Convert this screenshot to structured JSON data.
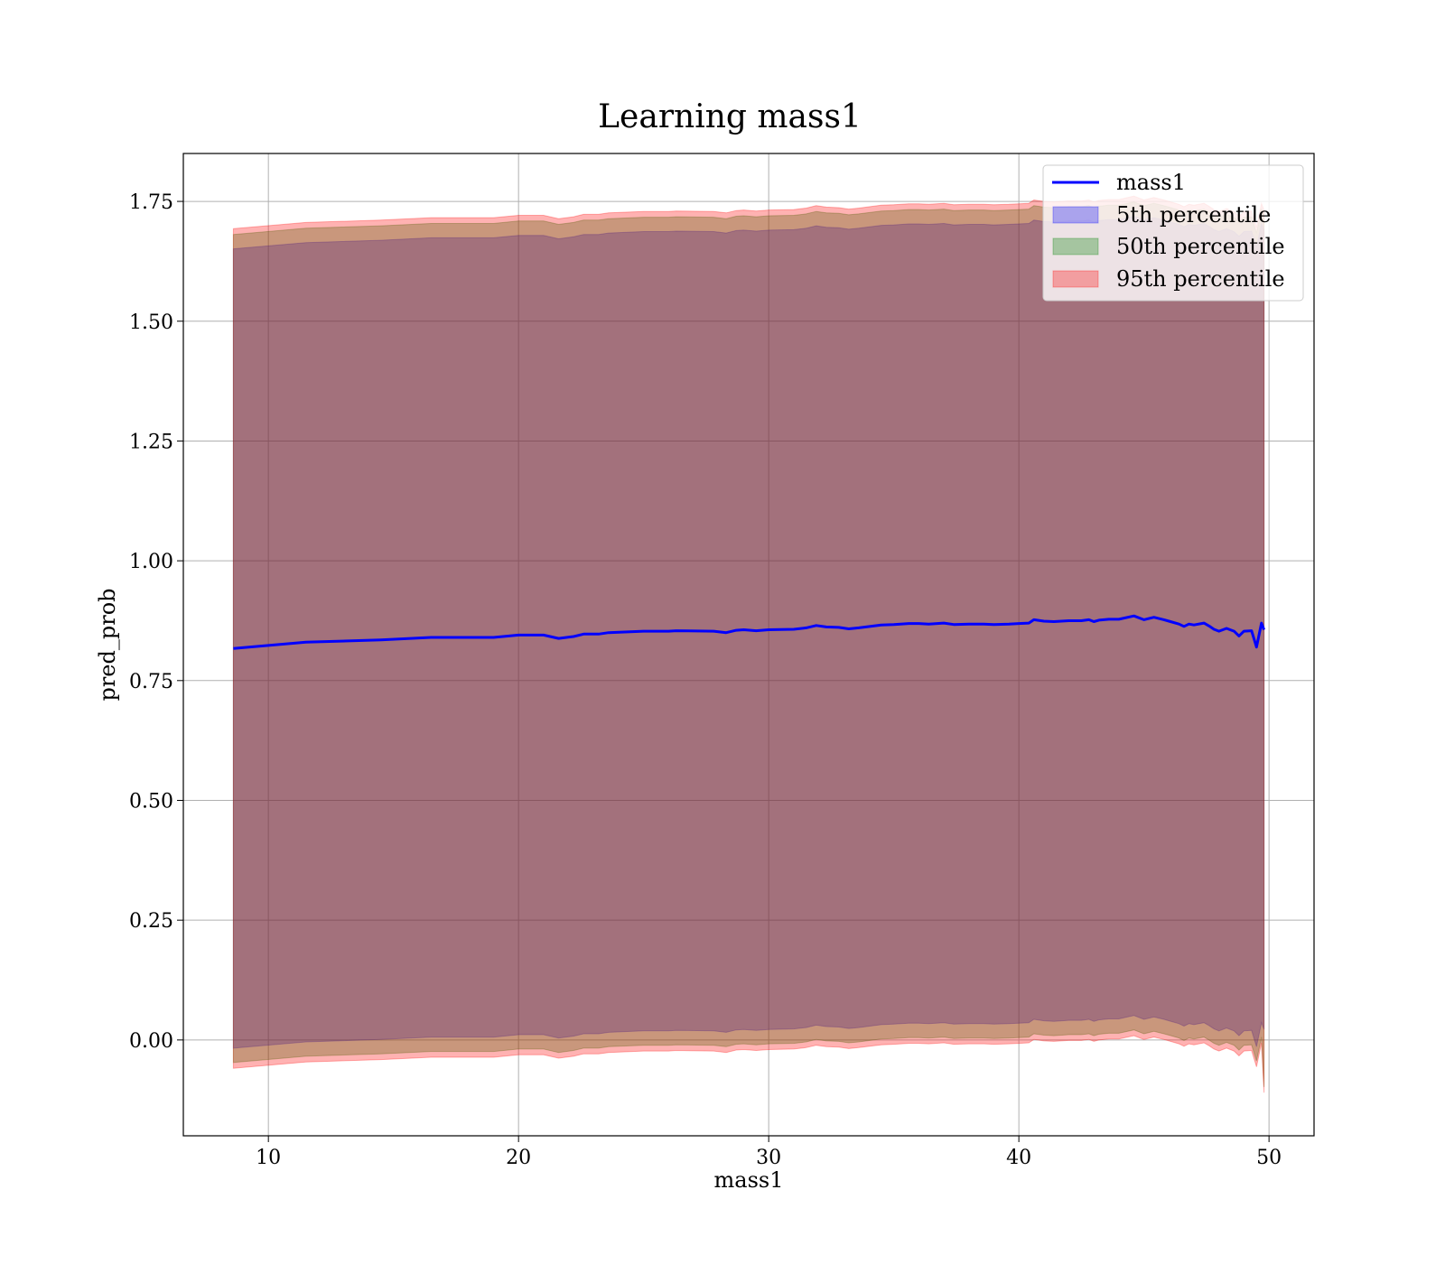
{
  "chart_data": {
    "type": "line",
    "title": "Learning mass1",
    "xlabel": "mass1",
    "ylabel": "pred_prob",
    "xlim": [
      6.6,
      51.8
    ],
    "ylim": [
      -0.2,
      1.85
    ],
    "xticks": [
      10,
      20,
      30,
      40,
      50
    ],
    "xtick_labels": [
      "10",
      "20",
      "30",
      "40",
      "50"
    ],
    "yticks": [
      0.0,
      0.25,
      0.5,
      0.75,
      1.0,
      1.25,
      1.5,
      1.75
    ],
    "ytick_labels": [
      "0.00",
      "0.25",
      "0.50",
      "0.75",
      "1.00",
      "1.25",
      "1.50",
      "1.75"
    ],
    "grid": true,
    "legend_position": "top-right",
    "x": [
      8.6,
      11.5,
      14.5,
      16.5,
      19.0,
      20.0,
      21.0,
      21.6,
      22.2,
      22.6,
      23.2,
      23.6,
      25.0,
      26.0,
      26.3,
      27.8,
      28.3,
      28.7,
      29.0,
      29.5,
      30.0,
      31.0,
      31.5,
      31.9,
      32.3,
      32.8,
      33.2,
      33.6,
      34.5,
      35.0,
      35.6,
      36.0,
      36.4,
      37.0,
      37.4,
      38.0,
      38.6,
      39.0,
      39.6,
      40.0,
      40.4,
      40.6,
      41.0,
      41.4,
      42.0,
      42.5,
      42.8,
      43.0,
      43.2,
      43.6,
      44.0,
      44.6,
      45.0,
      45.4,
      45.8,
      46.0,
      46.4,
      46.6,
      46.8,
      47.0,
      47.4,
      47.6,
      47.8,
      48.0,
      48.3,
      48.6,
      48.8,
      49.0,
      49.3,
      49.5,
      49.7,
      49.8
    ],
    "series": [
      {
        "name": "mass1",
        "kind": "line",
        "color": "#0000ff",
        "values": [
          0.817,
          0.83,
          0.835,
          0.84,
          0.84,
          0.845,
          0.845,
          0.838,
          0.842,
          0.847,
          0.847,
          0.85,
          0.853,
          0.853,
          0.854,
          0.853,
          0.85,
          0.855,
          0.856,
          0.854,
          0.856,
          0.857,
          0.86,
          0.865,
          0.862,
          0.861,
          0.858,
          0.86,
          0.866,
          0.867,
          0.869,
          0.869,
          0.868,
          0.87,
          0.867,
          0.868,
          0.868,
          0.867,
          0.868,
          0.869,
          0.87,
          0.877,
          0.874,
          0.873,
          0.875,
          0.875,
          0.877,
          0.873,
          0.876,
          0.878,
          0.878,
          0.885,
          0.877,
          0.882,
          0.877,
          0.874,
          0.868,
          0.863,
          0.868,
          0.866,
          0.87,
          0.864,
          0.857,
          0.853,
          0.859,
          0.853,
          0.843,
          0.853,
          0.854,
          0.82,
          0.87,
          0.856
        ]
      },
      {
        "name": "5th percentile",
        "kind": "band",
        "color": "#0000ff",
        "upper": [
          1.651,
          1.664,
          1.669,
          1.674,
          1.674,
          1.679,
          1.679,
          1.672,
          1.676,
          1.681,
          1.681,
          1.684,
          1.687,
          1.687,
          1.688,
          1.687,
          1.684,
          1.689,
          1.69,
          1.688,
          1.69,
          1.691,
          1.694,
          1.699,
          1.696,
          1.695,
          1.692,
          1.694,
          1.7,
          1.701,
          1.703,
          1.703,
          1.702,
          1.704,
          1.701,
          1.702,
          1.702,
          1.701,
          1.702,
          1.703,
          1.704,
          1.711,
          1.708,
          1.707,
          1.709,
          1.709,
          1.711,
          1.707,
          1.71,
          1.712,
          1.712,
          1.719,
          1.711,
          1.716,
          1.711,
          1.708,
          1.702,
          1.697,
          1.702,
          1.7,
          1.704,
          1.698,
          1.691,
          1.687,
          1.693,
          1.687,
          1.677,
          1.687,
          1.688,
          1.654,
          1.704,
          1.69
        ],
        "lower": [
          -0.017,
          -0.004,
          0.001,
          0.006,
          0.006,
          0.011,
          0.011,
          0.004,
          0.008,
          0.013,
          0.013,
          0.016,
          0.019,
          0.019,
          0.02,
          0.019,
          0.016,
          0.021,
          0.022,
          0.02,
          0.022,
          0.023,
          0.026,
          0.031,
          0.028,
          0.027,
          0.024,
          0.026,
          0.032,
          0.033,
          0.035,
          0.035,
          0.034,
          0.036,
          0.033,
          0.034,
          0.034,
          0.033,
          0.034,
          0.035,
          0.036,
          0.043,
          0.04,
          0.039,
          0.041,
          0.041,
          0.043,
          0.039,
          0.042,
          0.044,
          0.044,
          0.051,
          0.043,
          0.048,
          0.043,
          0.04,
          0.034,
          0.029,
          0.034,
          0.032,
          0.036,
          0.03,
          0.023,
          0.019,
          0.025,
          0.019,
          0.009,
          0.019,
          0.02,
          -0.014,
          0.036,
          0.022
        ]
      },
      {
        "name": "50th percentile",
        "kind": "band",
        "color": "#008000",
        "upper": [
          1.681,
          1.694,
          1.699,
          1.704,
          1.704,
          1.709,
          1.709,
          1.702,
          1.706,
          1.711,
          1.711,
          1.714,
          1.717,
          1.717,
          1.718,
          1.717,
          1.714,
          1.719,
          1.72,
          1.718,
          1.72,
          1.721,
          1.724,
          1.729,
          1.726,
          1.725,
          1.722,
          1.724,
          1.73,
          1.731,
          1.733,
          1.733,
          1.732,
          1.734,
          1.731,
          1.732,
          1.732,
          1.731,
          1.732,
          1.733,
          1.734,
          1.741,
          1.738,
          1.737,
          1.739,
          1.739,
          1.741,
          1.737,
          1.74,
          1.742,
          1.742,
          1.749,
          1.741,
          1.746,
          1.741,
          1.738,
          1.732,
          1.727,
          1.732,
          1.73,
          1.734,
          1.728,
          1.721,
          1.717,
          1.723,
          1.717,
          1.707,
          1.717,
          1.718,
          1.684,
          1.734,
          1.72
        ],
        "lower": [
          -0.047,
          -0.034,
          -0.029,
          -0.024,
          -0.024,
          -0.019,
          -0.019,
          -0.026,
          -0.022,
          -0.017,
          -0.017,
          -0.014,
          -0.011,
          -0.011,
          -0.01,
          -0.011,
          -0.014,
          -0.009,
          -0.008,
          -0.01,
          -0.008,
          -0.007,
          -0.004,
          0.001,
          -0.002,
          -0.003,
          -0.006,
          -0.004,
          0.002,
          0.003,
          0.005,
          0.005,
          0.004,
          0.006,
          0.003,
          0.004,
          0.004,
          0.003,
          0.004,
          0.005,
          0.006,
          0.013,
          0.01,
          0.009,
          0.011,
          0.011,
          0.013,
          0.009,
          0.012,
          0.014,
          0.014,
          0.021,
          0.013,
          0.018,
          0.013,
          0.01,
          0.004,
          -0.001,
          0.004,
          0.002,
          0.006,
          0.0,
          -0.007,
          -0.011,
          -0.005,
          -0.011,
          -0.021,
          -0.011,
          -0.01,
          -0.044,
          0.006,
          -0.098
        ]
      },
      {
        "name": "95th percentile",
        "kind": "band",
        "color": "#ff0000",
        "upper": [
          1.693,
          1.706,
          1.711,
          1.716,
          1.716,
          1.721,
          1.721,
          1.714,
          1.718,
          1.723,
          1.723,
          1.726,
          1.729,
          1.729,
          1.73,
          1.729,
          1.726,
          1.731,
          1.732,
          1.73,
          1.732,
          1.733,
          1.736,
          1.741,
          1.738,
          1.737,
          1.734,
          1.736,
          1.742,
          1.743,
          1.745,
          1.745,
          1.744,
          1.746,
          1.743,
          1.744,
          1.744,
          1.743,
          1.744,
          1.745,
          1.746,
          1.753,
          1.75,
          1.749,
          1.751,
          1.751,
          1.753,
          1.749,
          1.752,
          1.754,
          1.754,
          1.761,
          1.753,
          1.758,
          1.753,
          1.75,
          1.744,
          1.739,
          1.744,
          1.742,
          1.746,
          1.74,
          1.733,
          1.729,
          1.735,
          1.729,
          1.719,
          1.729,
          1.73,
          1.696,
          1.746,
          1.732
        ],
        "lower": [
          -0.059,
          -0.046,
          -0.041,
          -0.036,
          -0.036,
          -0.031,
          -0.031,
          -0.038,
          -0.034,
          -0.029,
          -0.029,
          -0.026,
          -0.023,
          -0.023,
          -0.022,
          -0.023,
          -0.026,
          -0.021,
          -0.02,
          -0.022,
          -0.02,
          -0.019,
          -0.016,
          -0.011,
          -0.014,
          -0.015,
          -0.018,
          -0.016,
          -0.01,
          -0.009,
          -0.007,
          -0.007,
          -0.008,
          -0.006,
          -0.009,
          -0.008,
          -0.008,
          -0.009,
          -0.008,
          -0.007,
          -0.006,
          0.001,
          -0.002,
          -0.003,
          -0.001,
          -0.001,
          0.001,
          -0.003,
          0.0,
          0.002,
          0.002,
          0.009,
          0.001,
          0.006,
          0.001,
          -0.002,
          -0.008,
          -0.013,
          -0.008,
          -0.01,
          -0.006,
          -0.012,
          -0.019,
          -0.023,
          -0.017,
          -0.023,
          -0.033,
          -0.023,
          -0.022,
          -0.056,
          -0.006,
          -0.11
        ]
      }
    ]
  }
}
